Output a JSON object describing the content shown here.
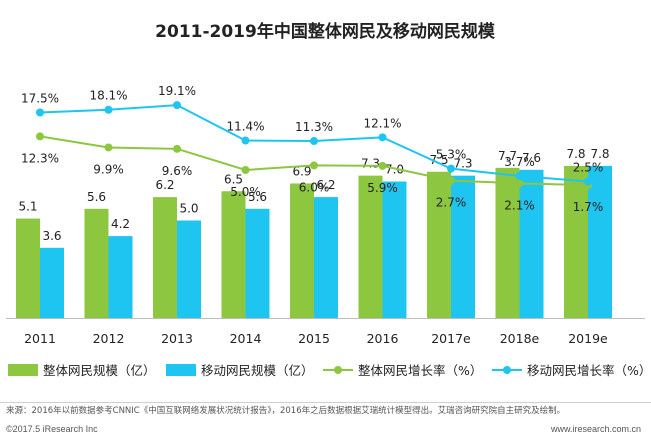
{
  "chart_data": {
    "type": "bar",
    "title": "2011-2019年中国整体网民及移动网民规模",
    "categories": [
      "2011",
      "2012",
      "2013",
      "2014",
      "2015",
      "2016",
      "2017e",
      "2018e",
      "2019e"
    ],
    "series": [
      {
        "name": "整体网民规模（亿）",
        "kind": "bar",
        "color": "#8dc63f",
        "values": [
          5.1,
          5.6,
          6.2,
          6.5,
          6.9,
          7.3,
          7.5,
          7.7,
          7.8
        ],
        "labels": [
          "5.1",
          "5.6",
          "6.2",
          "6.5",
          "6.9",
          "7.3",
          "7.5",
          "7.7",
          "7.8"
        ]
      },
      {
        "name": "移动网民规模（亿）",
        "kind": "bar",
        "color": "#1ec5f0",
        "values": [
          3.6,
          4.2,
          5.0,
          5.6,
          6.2,
          7.0,
          7.3,
          7.6,
          7.8
        ],
        "labels": [
          "3.6",
          "4.2",
          "5.0",
          "5.6",
          "6.2",
          "7.0",
          "7.3",
          "7.6",
          "7.8"
        ]
      },
      {
        "name": "整体网民增长率（%）",
        "kind": "line",
        "color": "#8dc63f",
        "values": [
          12.3,
          9.9,
          9.6,
          5.0,
          6.0,
          5.9,
          2.7,
          2.1,
          1.7
        ],
        "labels": [
          "12.3%",
          "9.9%",
          "9.6%",
          "5.0%",
          "6.0%",
          "5.9%",
          "2.7%",
          "2.1%",
          "1.7%"
        ]
      },
      {
        "name": "移动网民增长率（%）",
        "kind": "line",
        "color": "#1ec5f0",
        "values": [
          17.5,
          18.1,
          19.1,
          11.4,
          11.3,
          12.1,
          5.3,
          3.7,
          2.5
        ],
        "labels": [
          "17.5%",
          "18.1%",
          "19.1%",
          "11.4%",
          "11.3%",
          "12.1%",
          "5.3%",
          "3.7%",
          "2.5%"
        ]
      }
    ],
    "legend_position": "bottom",
    "grid": false
  },
  "footer": {
    "source": "来源：2016年以前数据参考CNNIC《中国互联网络发展状况统计报告》，2016年之后数据根据艾瑞统计模型得出。艾瑞咨询研究院自主研究及绘制。",
    "copyright": "©2017.5 iResearch Inc",
    "website": "www.iresearch.com.cn"
  }
}
